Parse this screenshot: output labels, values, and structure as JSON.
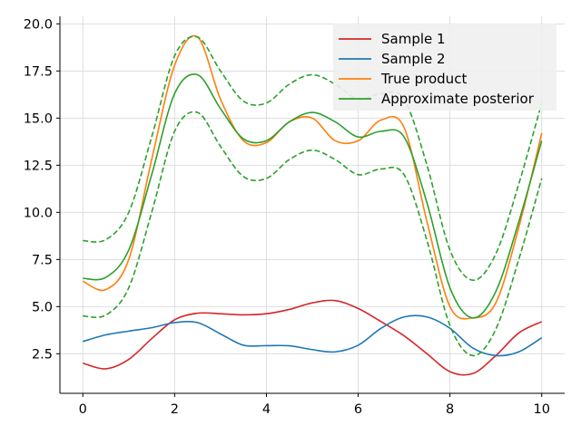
{
  "chart_data": {
    "type": "line",
    "title": "",
    "xlabel": "",
    "ylabel": "",
    "xlim": [
      -0.5,
      10.5
    ],
    "ylim": [
      0.4,
      20.4
    ],
    "xticks": [
      0,
      2,
      4,
      6,
      8,
      10
    ],
    "yticks": [
      2.5,
      5.0,
      7.5,
      10.0,
      12.5,
      15.0,
      17.5,
      20.0
    ],
    "xtick_labels": [
      "0",
      "2",
      "4",
      "6",
      "8",
      "10"
    ],
    "ytick_labels": [
      "2.5",
      "5.0",
      "7.5",
      "10.0",
      "12.5",
      "15.0",
      "17.5",
      "20.0"
    ],
    "grid": true,
    "legend_position": "top-right",
    "x": [
      0,
      0.5,
      1,
      1.5,
      2,
      2.5,
      3,
      3.5,
      4,
      4.5,
      5,
      5.5,
      6,
      6.5,
      7,
      7.5,
      8,
      8.5,
      9,
      9.5,
      10
    ],
    "series": [
      {
        "name": "Sample 1",
        "color": "#d62728",
        "style": "solid",
        "values": [
          2.0,
          1.7,
          2.2,
          3.3,
          4.3,
          4.65,
          4.62,
          4.56,
          4.62,
          4.85,
          5.2,
          5.32,
          4.9,
          4.2,
          3.45,
          2.5,
          1.55,
          1.45,
          2.4,
          3.6,
          4.2
        ]
      },
      {
        "name": "Sample 2",
        "color": "#1f77b4",
        "style": "solid",
        "values": [
          3.15,
          3.5,
          3.7,
          3.88,
          4.15,
          4.15,
          3.55,
          2.95,
          2.93,
          2.92,
          2.72,
          2.6,
          2.95,
          3.85,
          4.45,
          4.45,
          3.85,
          2.8,
          2.4,
          2.6,
          3.35
        ]
      },
      {
        "name": "True product",
        "color": "#ff7f0e",
        "style": "solid",
        "values": [
          6.35,
          5.9,
          7.5,
          12.8,
          17.8,
          19.3,
          16.0,
          13.8,
          13.7,
          14.8,
          15.0,
          13.8,
          13.8,
          14.9,
          14.5,
          9.5,
          5.0,
          4.4,
          5.2,
          9.2,
          14.2
        ]
      },
      {
        "name": "Approximate posterior",
        "color": "#2ca02c",
        "style": "solid",
        "values": [
          6.5,
          6.55,
          8.0,
          12.0,
          16.3,
          17.3,
          15.5,
          13.9,
          13.8,
          14.8,
          15.3,
          14.8,
          14.0,
          14.3,
          14.0,
          10.5,
          6.0,
          4.4,
          5.8,
          9.5,
          13.8
        ]
      },
      {
        "color": "#2ca02c",
        "style": "dashed",
        "values": [
          8.5,
          8.55,
          10.0,
          14.0,
          18.3,
          19.3,
          17.5,
          15.9,
          15.8,
          16.8,
          17.3,
          16.8,
          16.0,
          16.3,
          16.0,
          12.5,
          8.0,
          6.4,
          7.8,
          11.5,
          15.8
        ]
      },
      {
        "color": "#2ca02c",
        "style": "dashed",
        "values": [
          4.5,
          4.55,
          6.0,
          10.0,
          14.3,
          15.3,
          13.5,
          11.9,
          11.8,
          12.8,
          13.3,
          12.8,
          12.0,
          12.3,
          12.0,
          8.5,
          4.0,
          2.4,
          3.8,
          7.5,
          11.8
        ]
      }
    ],
    "legend": [
      "Sample 1",
      "Sample 2",
      "True product",
      "Approximate posterior"
    ]
  }
}
